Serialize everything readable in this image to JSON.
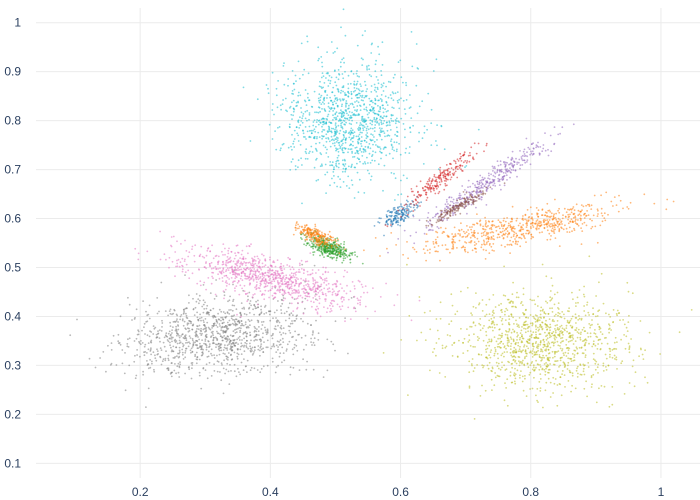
{
  "chart_data": {
    "type": "scatter",
    "title": "",
    "xlabel": "",
    "ylabel": "",
    "xlim": [
      0.04,
      1.06
    ],
    "ylim": [
      0.07,
      1.03
    ],
    "x_ticks": [
      {
        "value": 0.2,
        "label": "0.2"
      },
      {
        "value": 0.4,
        "label": "0.4"
      },
      {
        "value": 0.6,
        "label": "0.6"
      },
      {
        "value": 0.8,
        "label": "0.8"
      },
      {
        "value": 1.0,
        "label": "1"
      }
    ],
    "y_ticks": [
      {
        "value": 0.1,
        "label": "0.1"
      },
      {
        "value": 0.2,
        "label": "0.2"
      },
      {
        "value": 0.3,
        "label": "0.3"
      },
      {
        "value": 0.4,
        "label": "0.4"
      },
      {
        "value": 0.5,
        "label": "0.5"
      },
      {
        "value": 0.6,
        "label": "0.6"
      },
      {
        "value": 0.7,
        "label": "0.7"
      },
      {
        "value": 0.8,
        "label": "0.8"
      },
      {
        "value": 0.9,
        "label": "0.9"
      },
      {
        "value": 1.0,
        "label": "1"
      }
    ],
    "grid": true,
    "legend": "none",
    "series": [
      {
        "color": "#7f7f7f",
        "center": [
          0.32,
          0.36
        ],
        "spread": [
          0.07,
          0.04
        ],
        "tilt": 0.2,
        "density": 1.0
      },
      {
        "color": "#e377c2",
        "center": [
          0.4,
          0.48
        ],
        "spread": [
          0.07,
          0.022
        ],
        "tilt": -0.3,
        "density": 0.8
      },
      {
        "color": "#2ca02c",
        "center": [
          0.49,
          0.54
        ],
        "spread": [
          0.02,
          0.008
        ],
        "tilt": -0.55,
        "density": 0.35
      },
      {
        "color": "#ff7f0e",
        "center": [
          0.47,
          0.565
        ],
        "spread": [
          0.018,
          0.007
        ],
        "tilt": -0.6,
        "density": 0.2
      },
      {
        "color": "#17becf",
        "center": [
          0.52,
          0.8
        ],
        "spread": [
          0.05,
          0.06
        ],
        "tilt": 0.1,
        "density": 1.0
      },
      {
        "color": "#1f77b4",
        "center": [
          0.6,
          0.61
        ],
        "spread": [
          0.018,
          0.008
        ],
        "tilt": 0.8,
        "density": 0.15
      },
      {
        "color": "#d62728",
        "center": [
          0.66,
          0.68
        ],
        "spread": [
          0.04,
          0.008
        ],
        "tilt": 0.85,
        "density": 0.2
      },
      {
        "color": "#9467bd",
        "center": [
          0.73,
          0.67
        ],
        "spread": [
          0.07,
          0.009
        ],
        "tilt": 0.75,
        "density": 0.35
      },
      {
        "color": "#8c564b",
        "center": [
          0.69,
          0.625
        ],
        "spread": [
          0.03,
          0.005
        ],
        "tilt": 0.7,
        "density": 0.15
      },
      {
        "color": "#ff7f0e",
        "center": [
          0.78,
          0.58
        ],
        "spread": [
          0.08,
          0.016
        ],
        "tilt": 0.25,
        "density": 0.55
      },
      {
        "color": "#bcbd22",
        "center": [
          0.81,
          0.35
        ],
        "spread": [
          0.07,
          0.05
        ],
        "tilt": -0.1,
        "density": 1.0
      }
    ]
  }
}
